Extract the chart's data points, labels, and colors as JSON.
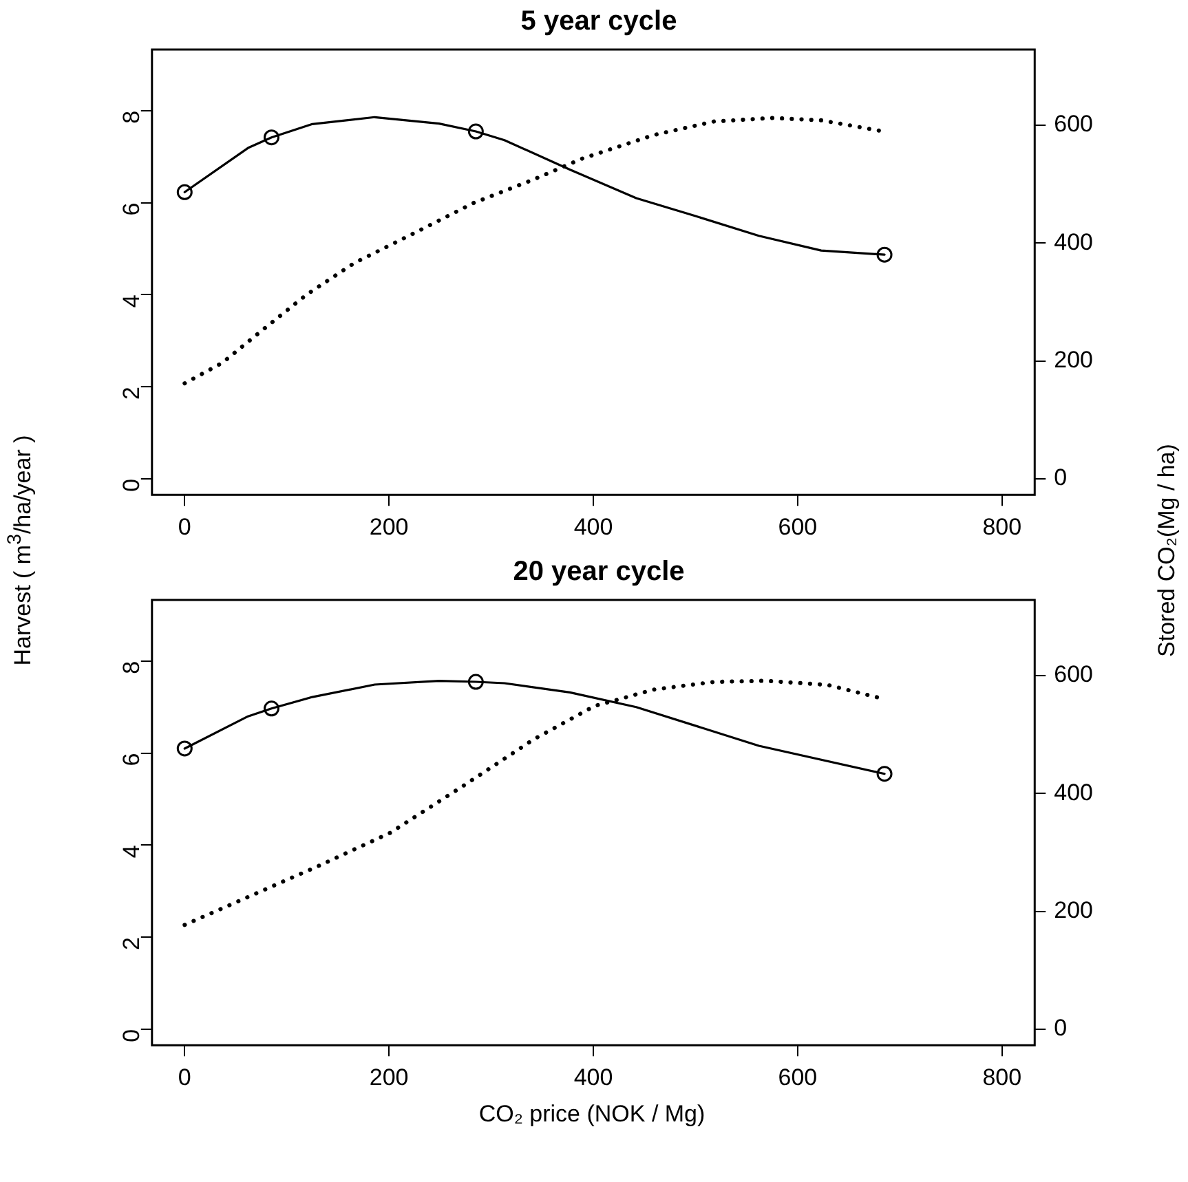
{
  "chart_data": [
    {
      "type": "line",
      "title": "5 year cycle",
      "ylabel": "Harvest ( m$^{3}$/ha/year )",
      "y2label": "Stored CO₂(Mg / ha)",
      "xlim": [
        -32,
        832
      ],
      "xticks": [
        0,
        200,
        400,
        600,
        800
      ],
      "ylim": [
        -0.35,
        9.33
      ],
      "yticks": [
        0,
        2,
        4,
        6,
        8
      ],
      "y2lim": [
        -27,
        728
      ],
      "y2ticks": [
        0,
        200,
        400,
        600
      ],
      "series": [
        {
          "color": "#000000",
          "line_style": "solid",
          "marker": "none",
          "x": [
            0,
            62,
            85,
            125,
            186,
            249,
            285,
            313,
            377,
            442,
            500,
            562,
            623,
            685
          ],
          "values": [
            6.23,
            7.19,
            7.42,
            7.71,
            7.86,
            7.72,
            7.55,
            7.36,
            6.72,
            6.1,
            5.71,
            5.28,
            4.96,
            4.87
          ]
        },
        {
          "type": "scatter",
          "color": "#000000",
          "marker": "circle",
          "x": [
            0,
            85,
            285,
            685
          ],
          "values": [
            6.23,
            7.42,
            7.55,
            4.87
          ]
        },
        {
          "color": "#000000",
          "line_style": "dotted",
          "marker": "none",
          "axis": "y2",
          "x": [
            0,
            37,
            78,
            119,
            166,
            225,
            283,
            342,
            389,
            459,
            518,
            576,
            623,
            685
          ],
          "values": [
            162,
            197,
            255,
            312,
            366,
            417,
            468,
            508,
            543,
            583,
            606,
            612,
            608,
            589
          ]
        }
      ]
    },
    {
      "type": "line",
      "title": "20 year cycle",
      "xlabel": "CO₂ price (NOK / Mg)",
      "xlim": [
        -32,
        832
      ],
      "xticks": [
        0,
        200,
        400,
        600,
        800
      ],
      "ylim": [
        -0.35,
        9.33
      ],
      "yticks": [
        0,
        2,
        4,
        6,
        8
      ],
      "y2lim": [
        -27,
        728
      ],
      "y2ticks": [
        0,
        200,
        400,
        600
      ],
      "series": [
        {
          "color": "#000000",
          "line_style": "solid",
          "marker": "none",
          "x": [
            0,
            62,
            85,
            125,
            186,
            249,
            285,
            313,
            377,
            442,
            562,
            685
          ],
          "values": [
            6.1,
            6.8,
            6.97,
            7.22,
            7.49,
            7.57,
            7.55,
            7.52,
            7.32,
            7.0,
            6.16,
            5.55
          ]
        },
        {
          "type": "scatter",
          "color": "#000000",
          "marker": "circle",
          "x": [
            0,
            85,
            285,
            685
          ],
          "values": [
            6.1,
            6.97,
            7.55,
            5.55
          ]
        },
        {
          "color": "#000000",
          "line_style": "dotted",
          "marker": "none",
          "axis": "y2",
          "x": [
            0,
            72,
            131,
            201,
            272,
            342,
            401,
            459,
            518,
            568,
            629,
            680
          ],
          "values": [
            177,
            232,
            277,
            333,
            412,
            492,
            548,
            576,
            589,
            591,
            584,
            562
          ]
        }
      ]
    }
  ]
}
